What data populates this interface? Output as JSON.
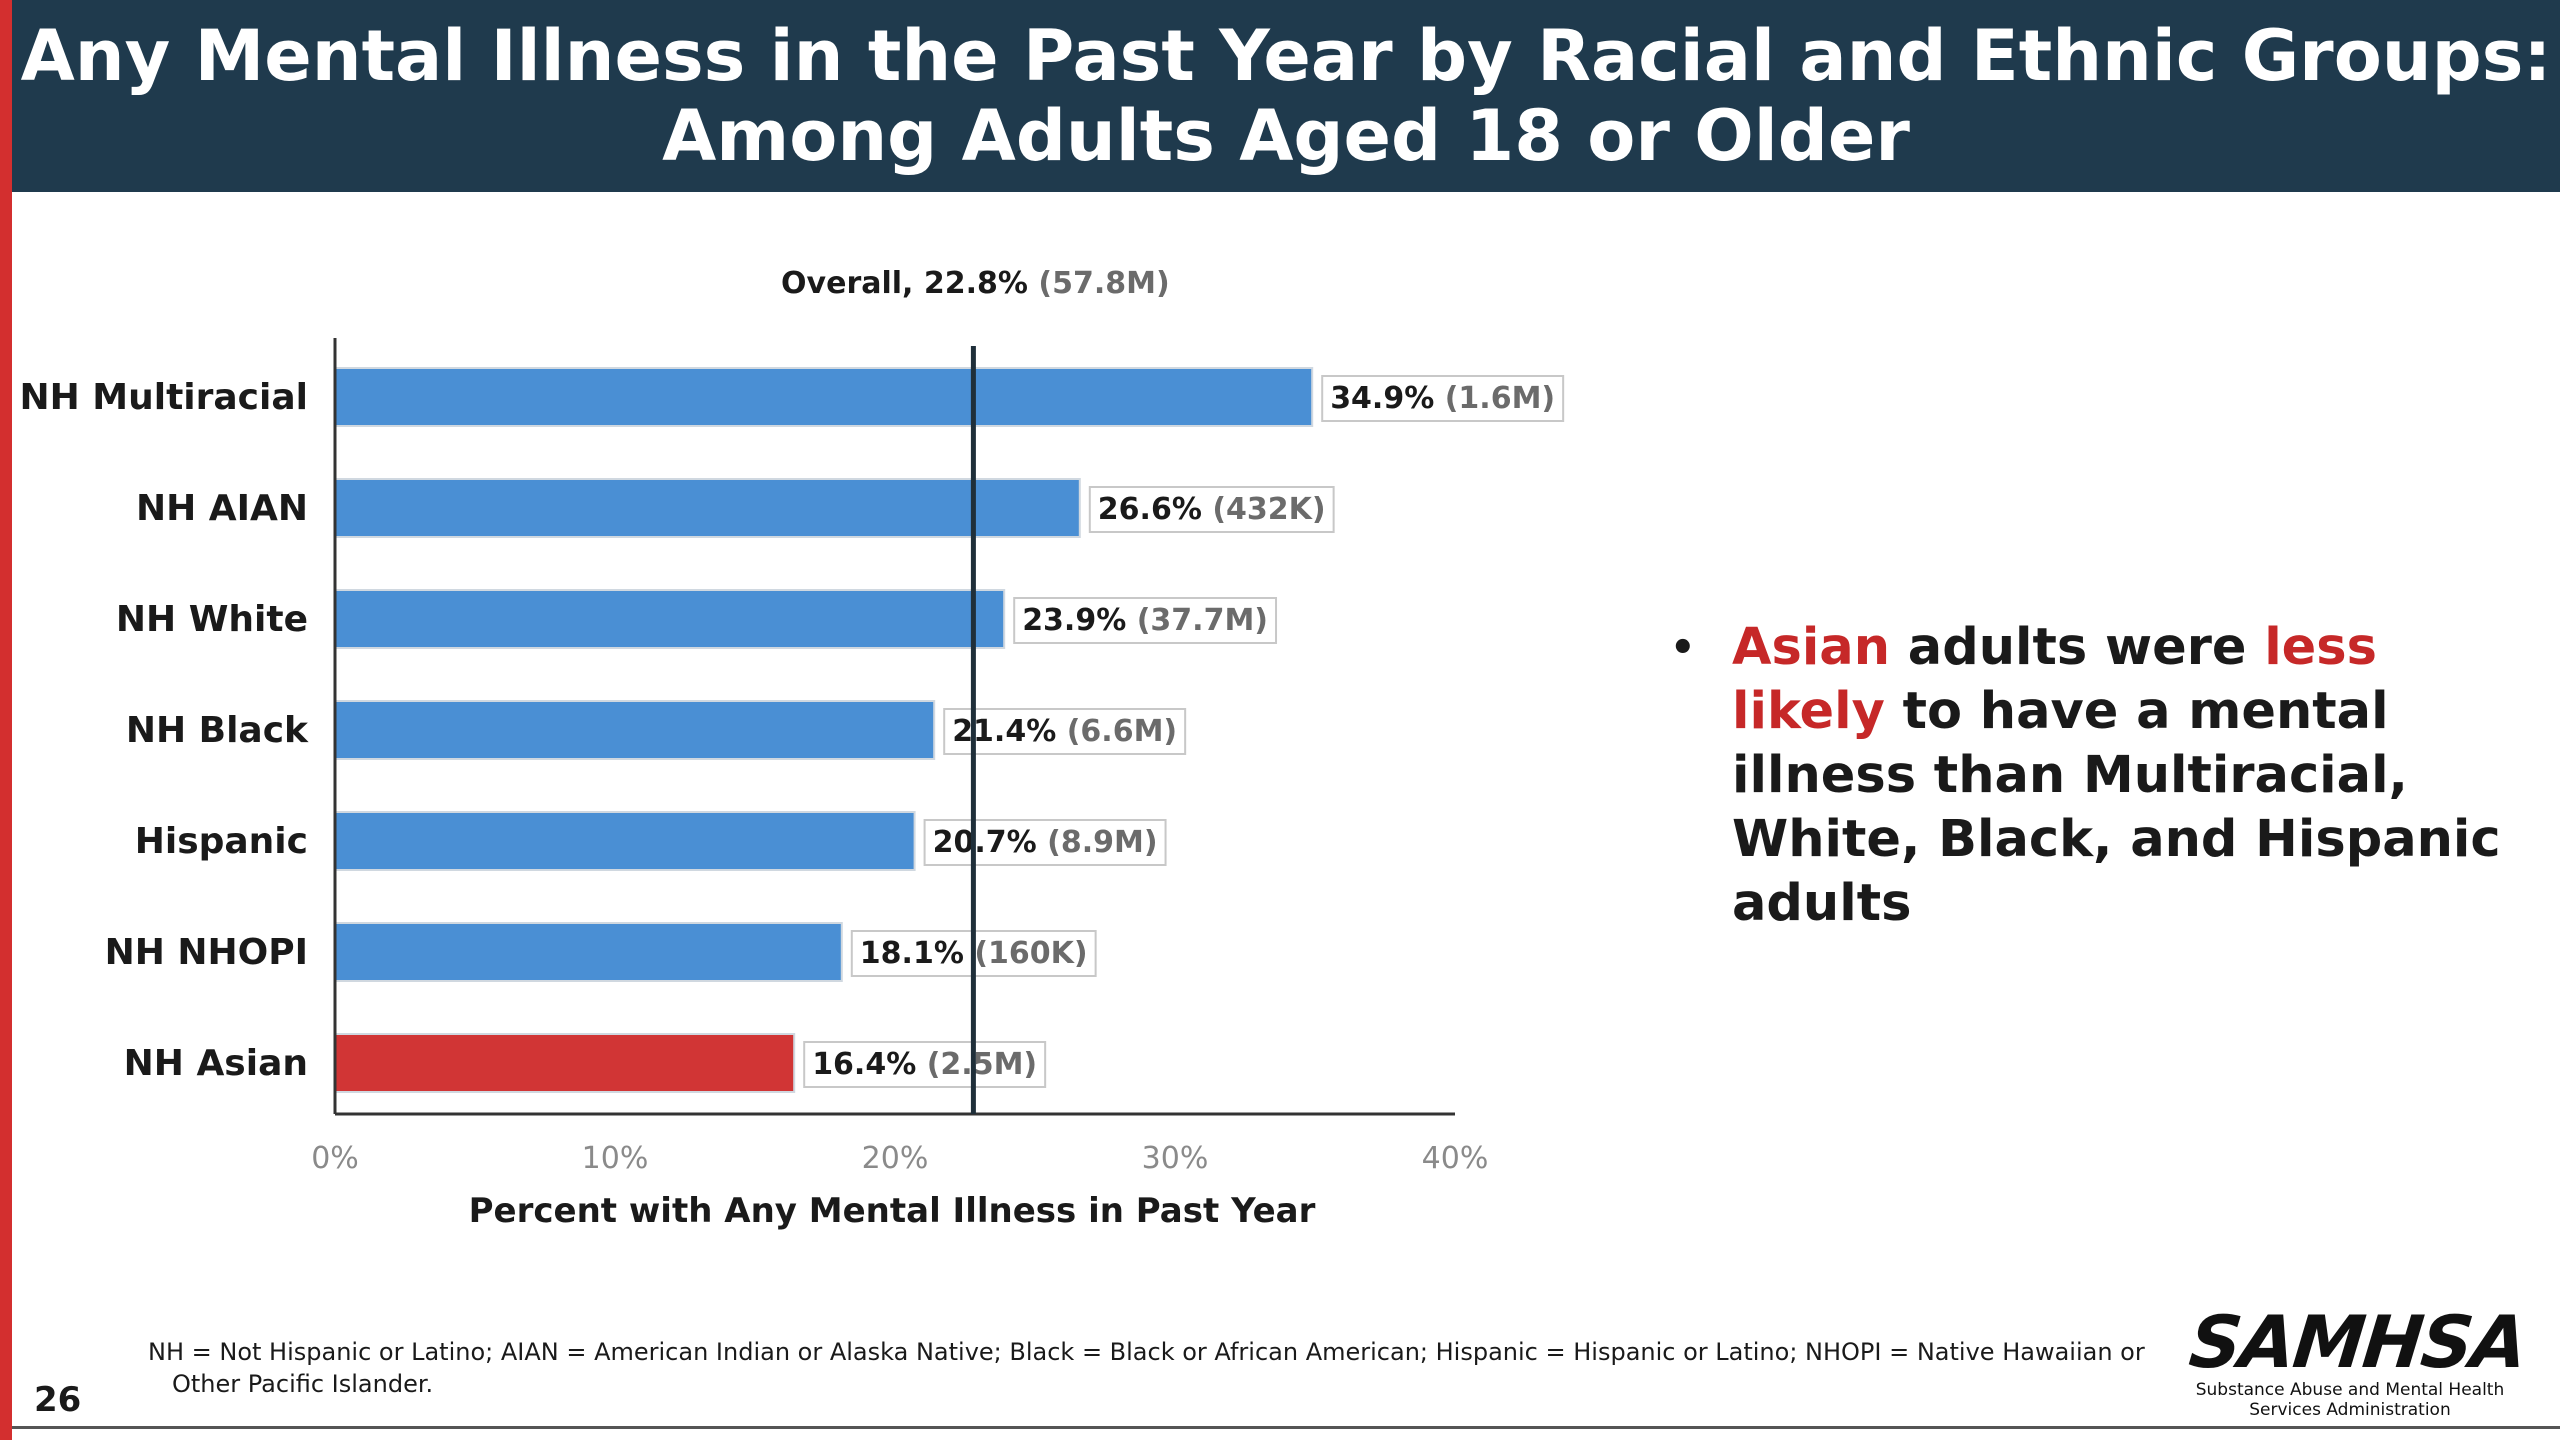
{
  "header": {
    "title_line1": "Any Mental Illness in the Past Year by Racial and Ethnic Groups:",
    "title_line2": "Among Adults Aged 18 or Older"
  },
  "colors": {
    "header_bg": "#1f3a4d",
    "accent_bar": "#d32f2f",
    "bar_default": "#4a8fd4",
    "bar_highlight": "#d13535",
    "reference_line": "#1f2f3a",
    "highlight_text": "#c62828"
  },
  "chart_data": {
    "type": "bar",
    "orientation": "horizontal",
    "categories": [
      "NH Multiracial",
      "NH AIAN",
      "NH White",
      "NH Black",
      "Hispanic",
      "NH NHOPI",
      "NH Asian"
    ],
    "values": [
      34.9,
      26.6,
      23.9,
      21.4,
      20.7,
      18.1,
      16.4
    ],
    "value_labels": [
      "34.9%",
      "26.6%",
      "23.9%",
      "21.4%",
      "20.7%",
      "18.1%",
      "16.4%"
    ],
    "counts": [
      "(1.6M)",
      "(432K)",
      "(37.7M)",
      "(6.6M)",
      "(8.9M)",
      "(160K)",
      "(2.5M)"
    ],
    "highlight_category": "NH Asian",
    "reference": {
      "value": 22.8,
      "label": "Overall, 22.8%",
      "count": "(57.8M)"
    },
    "xlabel": "Percent with Any Mental Illness in Past Year",
    "xlim": [
      0,
      40
    ],
    "xticks": [
      0,
      10,
      20,
      30,
      40
    ],
    "xtick_labels": [
      "0%",
      "10%",
      "20%",
      "30%",
      "40%"
    ],
    "grid": false,
    "legend": "none"
  },
  "bullet": {
    "marker": "•",
    "part1": "Asian",
    "part2": " adults were ",
    "part3": "less likely",
    "part4": " to have a mental illness than Multiracial, White, Black, and Hispanic adults"
  },
  "footnote": "NH = Not Hispanic or Latino; AIAN = American Indian or Alaska Native; Black = Black or African American; Hispanic = Hispanic or Latino; NHOPI = Native Hawaiian or Other Pacific Islander.",
  "page_number": "26",
  "logo": {
    "name": "SAMHSA",
    "tagline_line1": "Substance Abuse and Mental Health",
    "tagline_line2": "Services Administration"
  }
}
